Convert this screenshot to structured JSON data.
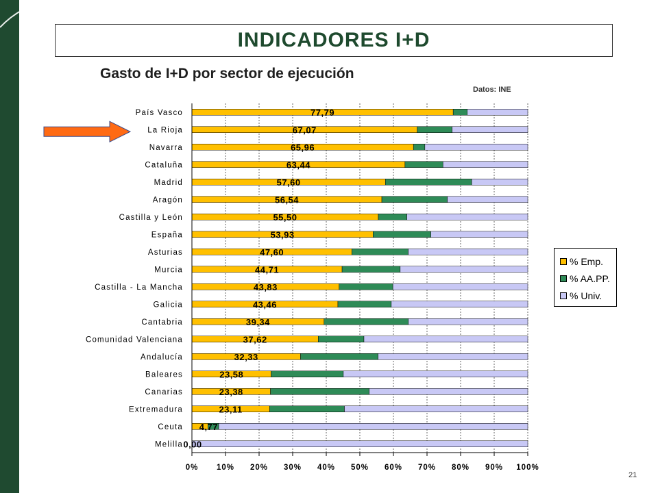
{
  "slide": {
    "title": "INDICADORES I+D",
    "subtitle": "Gasto de I+D por sector de ejecución",
    "source": "Datos: INE",
    "page_number": "21"
  },
  "colors": {
    "sidebar": "#1f4a30",
    "emp": "#ffc000",
    "aapp": "#2e8b57",
    "univ": "#c8c8f5",
    "arrow": "#ff6a13"
  },
  "chart_data": {
    "type": "bar",
    "orientation": "horizontal",
    "stacked": "percent",
    "categories": [
      "País Vasco",
      "La Rioja",
      "Navarra",
      "Cataluña",
      "Madrid",
      "Aragón",
      "Castilla y León",
      "España",
      "Asturias",
      "Murcia",
      "Castilla - La Mancha",
      "Galicia",
      "Cantabria",
      "Comunidad Valenciana",
      "Andalucía",
      "Baleares",
      "Canarias",
      "Extremadura",
      "Ceuta",
      "Melilla"
    ],
    "value_labels": [
      "77,79",
      "67,07",
      "65,96",
      "63,44",
      "57,60",
      "56,54",
      "55,50",
      "53,93",
      "47,60",
      "44,71",
      "43,83",
      "43,46",
      "39,34",
      "37,62",
      "32,33",
      "23,58",
      "23,38",
      "23,11",
      "4,77",
      "0,00"
    ],
    "series": [
      {
        "name": "% Emp.",
        "values": [
          77.79,
          67.07,
          65.96,
          63.44,
          57.6,
          56.54,
          55.5,
          53.93,
          47.6,
          44.71,
          43.83,
          43.46,
          39.34,
          37.62,
          32.33,
          23.58,
          23.38,
          23.11,
          4.77,
          0.0
        ]
      },
      {
        "name": "% AA.PP.",
        "values": [
          4.2,
          10.4,
          3.4,
          11.3,
          25.7,
          19.5,
          8.5,
          17.2,
          16.8,
          17.3,
          16.0,
          15.9,
          25.1,
          13.6,
          23.1,
          21.5,
          29.4,
          22.3,
          3.2,
          0.0
        ]
      },
      {
        "name": "% Univ.",
        "values": [
          18.01,
          22.53,
          30.64,
          25.26,
          16.7,
          23.96,
          36.0,
          28.87,
          35.6,
          37.99,
          40.17,
          40.64,
          35.56,
          48.78,
          44.57,
          54.92,
          47.22,
          54.59,
          92.03,
          100.0
        ]
      }
    ],
    "x_ticks": [
      "0%",
      "10%",
      "20%",
      "30%",
      "40%",
      "50%",
      "60%",
      "70%",
      "80%",
      "90%",
      "100%"
    ],
    "xlim": [
      0,
      100
    ],
    "grid": "vertical",
    "legend_position": "right",
    "highlighted_category": "La Rioja"
  }
}
